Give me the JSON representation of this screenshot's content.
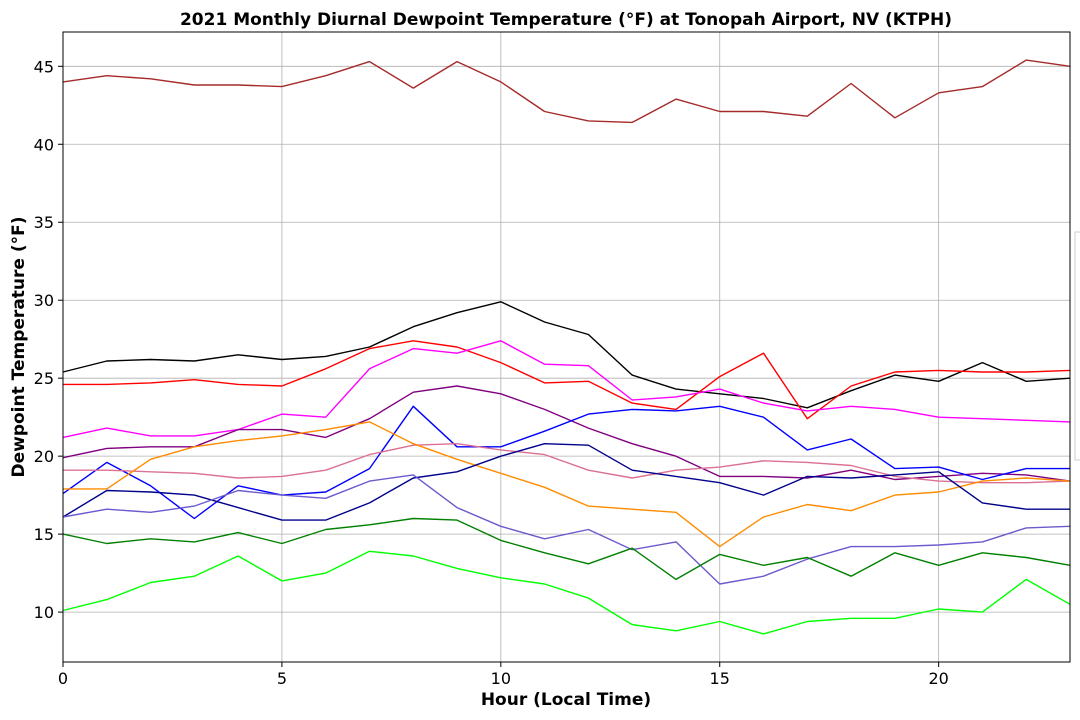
{
  "chart_data": {
    "type": "line",
    "title": "2021 Monthly Diurnal Dewpoint Temperature (°F) at Tonopah Airport, NV (KTPH)",
    "xlabel": "Hour (Local Time)",
    "ylabel": "Dewpoint Temperature (°F)",
    "xlim": [
      0,
      23
    ],
    "ylim": [
      6.8,
      47.2
    ],
    "xticks": [
      0,
      5,
      10,
      15,
      20
    ],
    "yticks": [
      10,
      15,
      20,
      25,
      30,
      35,
      40,
      45
    ],
    "grid": true,
    "legend": "right",
    "x": [
      0,
      1,
      2,
      3,
      4,
      5,
      6,
      7,
      8,
      9,
      10,
      11,
      12,
      13,
      14,
      15,
      16,
      17,
      18,
      19,
      20,
      21,
      22,
      23
    ],
    "series": [
      {
        "color": "#a52a2a",
        "values": [
          44.0,
          44.4,
          44.2,
          43.8,
          43.8,
          43.7,
          44.4,
          45.3,
          43.6,
          45.3,
          44.0,
          42.1,
          41.5,
          41.4,
          42.9,
          42.1,
          42.1,
          41.8,
          43.9,
          41.7,
          43.3,
          43.7,
          45.4,
          45.0
        ]
      },
      {
        "color": "#000000",
        "values": [
          25.4,
          26.1,
          26.2,
          26.1,
          26.5,
          26.2,
          26.4,
          27.0,
          28.3,
          29.2,
          29.9,
          28.6,
          27.8,
          25.2,
          24.3,
          24.0,
          23.7,
          23.1,
          24.2,
          25.2,
          24.8,
          26.0,
          24.8,
          25.0
        ]
      },
      {
        "color": "#ff0000",
        "values": [
          24.6,
          24.6,
          24.7,
          24.9,
          24.6,
          24.5,
          25.6,
          26.9,
          27.4,
          27.0,
          26.0,
          24.7,
          24.8,
          23.4,
          23.0,
          25.1,
          26.6,
          22.4,
          24.5,
          25.4,
          25.5,
          25.4,
          25.4,
          25.5
        ]
      },
      {
        "color": "#ff00ff",
        "values": [
          21.2,
          21.8,
          21.3,
          21.3,
          21.7,
          22.7,
          22.5,
          25.6,
          26.9,
          26.6,
          27.4,
          25.9,
          25.8,
          23.6,
          23.8,
          24.3,
          23.4,
          22.9,
          23.2,
          23.0,
          22.5,
          22.4,
          22.3,
          22.2
        ]
      },
      {
        "color": "#800080",
        "values": [
          19.9,
          20.5,
          20.6,
          20.6,
          21.7,
          21.7,
          21.2,
          22.4,
          24.1,
          24.5,
          24.0,
          23.0,
          21.8,
          20.8,
          20.0,
          18.7,
          18.7,
          18.6,
          19.1,
          18.5,
          18.7,
          18.9,
          18.8,
          18.4
        ]
      },
      {
        "color": "#0000ff",
        "values": [
          17.6,
          19.6,
          18.1,
          16.0,
          18.1,
          17.5,
          17.7,
          19.2,
          23.2,
          20.6,
          20.6,
          21.6,
          22.7,
          23.0,
          22.9,
          23.2,
          22.5,
          20.4,
          21.1,
          19.2,
          19.3,
          18.5,
          19.2,
          19.2
        ]
      },
      {
        "color": "#db7093",
        "values": [
          19.1,
          19.1,
          19.0,
          18.9,
          18.6,
          18.7,
          19.1,
          20.1,
          20.7,
          20.8,
          20.4,
          20.1,
          19.1,
          18.6,
          19.1,
          19.3,
          19.7,
          19.6,
          19.4,
          18.7,
          18.4,
          18.3,
          18.3,
          18.4
        ]
      },
      {
        "color": "#ff8c00",
        "values": [
          17.9,
          17.9,
          19.8,
          20.6,
          21.0,
          21.3,
          21.7,
          22.2,
          20.8,
          19.8,
          18.9,
          18.0,
          16.8,
          16.6,
          16.4,
          14.2,
          16.1,
          16.9,
          16.5,
          17.5,
          17.7,
          18.4,
          18.6,
          18.4
        ]
      },
      {
        "color": "#00008b",
        "values": [
          16.1,
          17.8,
          17.7,
          17.5,
          16.7,
          15.9,
          15.9,
          17.0,
          18.6,
          19.0,
          20.0,
          20.8,
          20.7,
          19.1,
          18.7,
          18.3,
          17.5,
          18.7,
          18.6,
          18.8,
          19.0,
          17.0,
          16.6,
          16.6
        ]
      },
      {
        "color": "#6a5acd",
        "values": [
          16.1,
          16.6,
          16.4,
          16.8,
          17.8,
          17.5,
          17.3,
          18.4,
          18.8,
          16.7,
          15.5,
          14.7,
          15.3,
          14.0,
          14.5,
          11.8,
          12.3,
          13.4,
          14.2,
          14.2,
          14.3,
          14.5,
          15.4,
          15.5
        ]
      },
      {
        "color": "#008000",
        "values": [
          15.0,
          14.4,
          14.7,
          14.5,
          15.1,
          14.4,
          15.3,
          15.6,
          16.0,
          15.9,
          14.6,
          13.8,
          13.1,
          14.1,
          12.1,
          13.7,
          13.0,
          13.5,
          12.3,
          13.8,
          13.0,
          13.8,
          13.5,
          13.0
        ]
      },
      {
        "color": "#00ff00",
        "values": [
          10.1,
          10.8,
          11.9,
          12.3,
          13.6,
          12.0,
          12.5,
          13.9,
          13.6,
          12.8,
          12.2,
          11.8,
          10.9,
          9.2,
          8.8,
          9.4,
          8.6,
          9.4,
          9.6,
          9.6,
          10.2,
          10.0,
          12.1,
          10.5
        ]
      }
    ]
  }
}
